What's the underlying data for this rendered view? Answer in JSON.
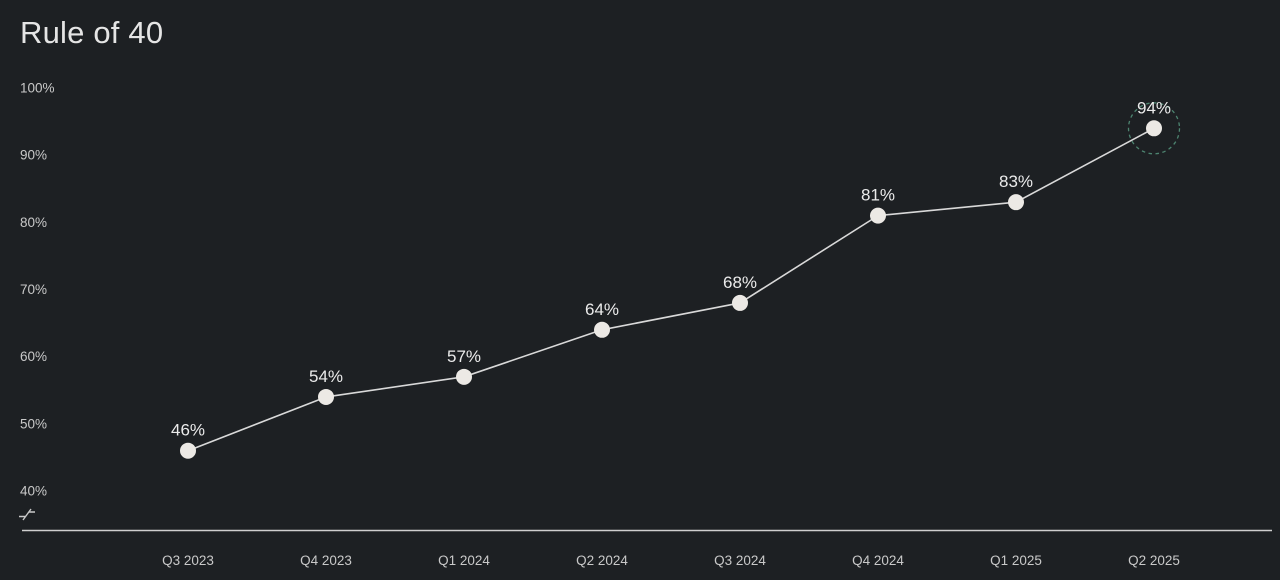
{
  "page": {
    "title": "Rule of 40"
  },
  "chart_data": {
    "type": "line",
    "title": "Rule of 40",
    "categories": [
      "Q3 2023",
      "Q4 2023",
      "Q1 2024",
      "Q2 2024",
      "Q3 2024",
      "Q4 2024",
      "Q1 2025",
      "Q2 2025"
    ],
    "series": [
      {
        "name": "Rule of 40",
        "values": [
          46,
          54,
          57,
          64,
          68,
          81,
          83,
          94
        ]
      }
    ],
    "data_labels": [
      "46%",
      "54%",
      "57%",
      "64%",
      "68%",
      "81%",
      "83%",
      "94%"
    ],
    "unit": "%",
    "xlabel": "",
    "ylabel": "",
    "ylim": [
      40,
      100
    ],
    "yticks": [
      100,
      90,
      80,
      70,
      60,
      50,
      40
    ],
    "ytick_labels": [
      "100%",
      "90%",
      "80%",
      "70%",
      "60%",
      "50%",
      "40%"
    ],
    "axis_break": true,
    "grid": false,
    "legend": "none",
    "highlight_index": 7,
    "colors": {
      "background": "#1d2023",
      "line": "#d9d9d9",
      "point_fill": "#ece9e5",
      "point_label": "#ebebeb",
      "tick_label": "#c9c9c9",
      "axis_line": "#cfcfcf",
      "highlight_ring": "#4d8470",
      "title": "#e5e5e5"
    }
  }
}
